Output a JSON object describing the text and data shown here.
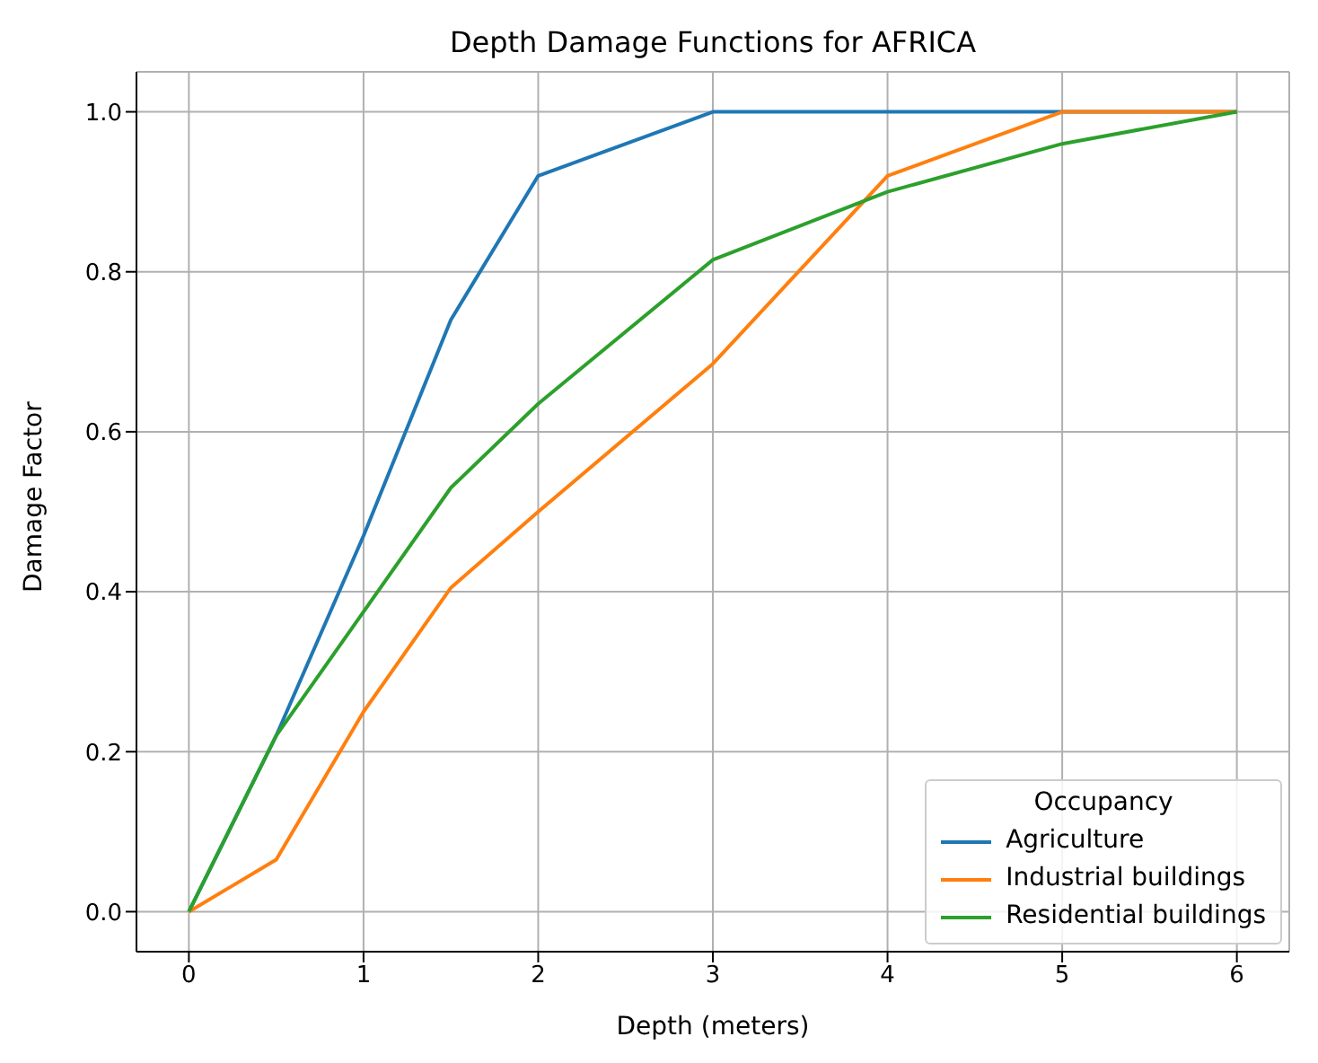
{
  "chart_data": {
    "type": "line",
    "title": "Depth Damage Functions for AFRICA",
    "xlabel": "Depth (meters)",
    "ylabel": "Damage Factor",
    "legend_title": "Occupancy",
    "x": [
      0,
      0.5,
      1,
      1.5,
      2,
      3,
      4,
      5,
      6
    ],
    "series": [
      {
        "name": "Agriculture",
        "color": "#1f77b4",
        "values": [
          0,
          0.22,
          0.47,
          0.74,
          0.92,
          1.0,
          1.0,
          1.0,
          1.0
        ]
      },
      {
        "name": "Industrial buildings",
        "color": "#ff7f0e",
        "values": [
          0,
          0.065,
          0.25,
          0.405,
          0.5,
          0.685,
          0.92,
          1.0,
          1.0
        ]
      },
      {
        "name": "Residential buildings",
        "color": "#2ca02c",
        "values": [
          0,
          0.22,
          0.375,
          0.53,
          0.635,
          0.815,
          0.9,
          0.96,
          1.0
        ]
      }
    ],
    "xlim": [
      -0.3,
      6.3
    ],
    "xticks": [
      0,
      1,
      2,
      3,
      4,
      5,
      6
    ],
    "ylim": [
      -0.05,
      1.05
    ],
    "yticks": [
      {
        "value": 0,
        "label": "0.0"
      },
      {
        "value": 0.2,
        "label": "0.2"
      },
      {
        "value": 0.4,
        "label": "0.4"
      },
      {
        "value": 0.6,
        "label": "0.6"
      },
      {
        "value": 0.8,
        "label": "0.8"
      },
      {
        "value": 1.0,
        "label": "1.0"
      }
    ],
    "grid": true,
    "legend": "bottom right",
    "marker": "none",
    "line_style": "solid"
  }
}
